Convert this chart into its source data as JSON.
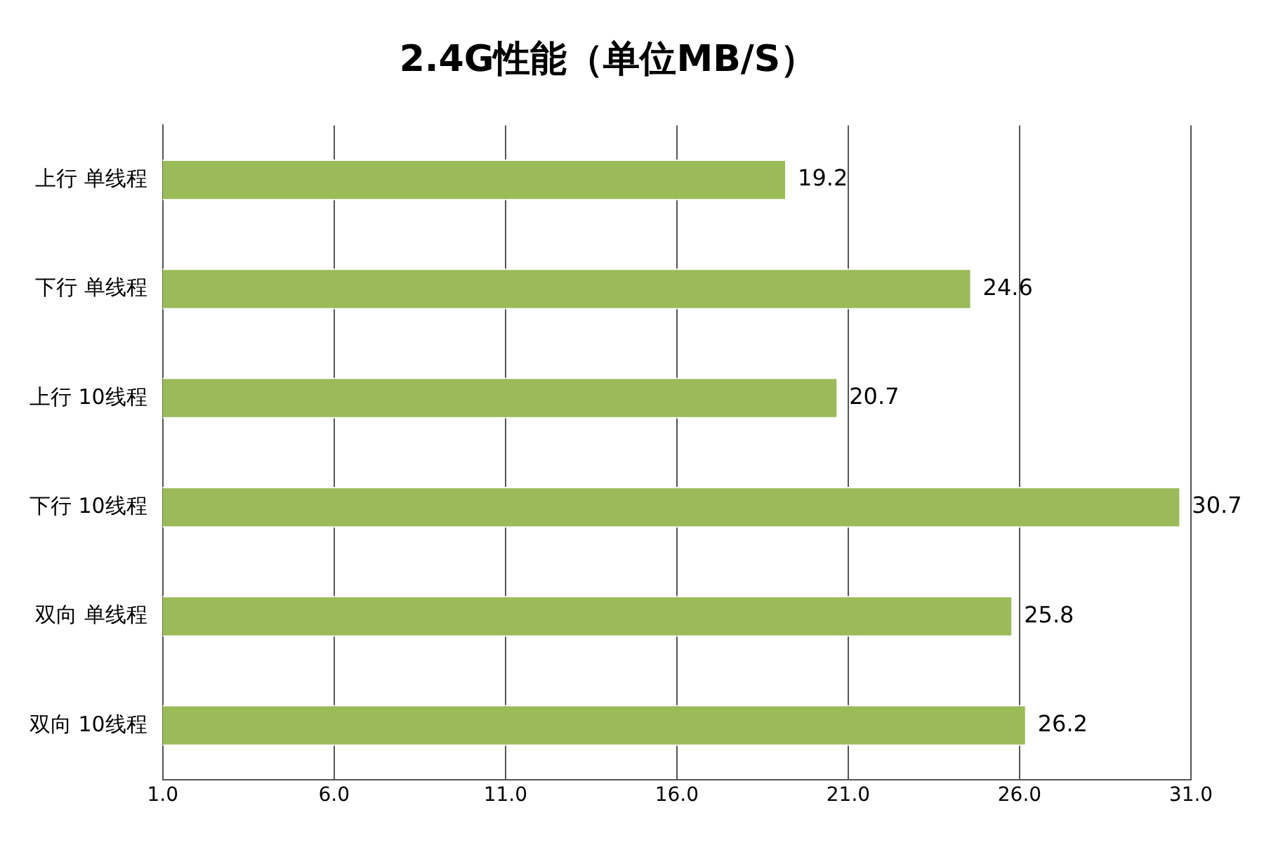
{
  "chart_data": {
    "type": "bar",
    "orientation": "horizontal",
    "title": "2.4G性能（单位MB/S）",
    "categories": [
      "上行 单线程",
      "下行 单线程",
      "上行 10线程",
      "下行 10线程",
      "双向 单线程",
      "双向 10线程"
    ],
    "values": [
      19.2,
      24.6,
      20.7,
      30.7,
      25.8,
      26.2
    ],
    "color": "#9bbb59",
    "xlim": [
      1,
      31
    ],
    "xticks": [
      {
        "value": 1,
        "label": "1.0"
      },
      {
        "value": 6,
        "label": "6.0"
      },
      {
        "value": 11,
        "label": "11.0"
      },
      {
        "value": 16,
        "label": "16.0"
      },
      {
        "value": 21,
        "label": "21.0"
      },
      {
        "value": 26,
        "label": "26.0"
      },
      {
        "value": 31,
        "label": "31.0"
      }
    ],
    "grid": "x",
    "data_labels": true,
    "legend": false
  }
}
